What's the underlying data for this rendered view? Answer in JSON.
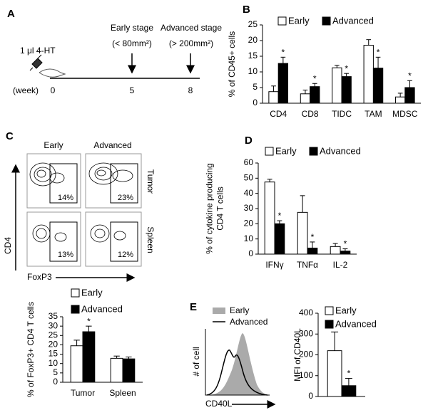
{
  "panel_labels": [
    "A",
    "B",
    "C",
    "D",
    "E"
  ],
  "timeline": {
    "dose": "1 μl 4-HT",
    "unit": "(week)",
    "weeks": [
      "0",
      "5",
      "8"
    ],
    "stages": [
      {
        "name": "Early stage",
        "size": "(< 80mm²)"
      },
      {
        "name": "Advanced stage",
        "size": "(> 200mm²)"
      }
    ]
  },
  "flow": {
    "columns": [
      "Early",
      "Advanced"
    ],
    "rows": [
      "Tumor",
      "Spleen"
    ],
    "gates": [
      [
        "14%",
        "23%"
      ],
      [
        "13%",
        "12%"
      ]
    ],
    "y_axis": "CD4",
    "x_axis": "FoxP3"
  },
  "histogram": {
    "legend": [
      "Early",
      "Advanced"
    ],
    "y_axis": "# of cell",
    "x_axis": "CD40L"
  },
  "chart_data": [
    {
      "type": "bar",
      "ylabel": [
        "% of CD45+ cells"
      ],
      "categories": [
        "CD4",
        "CD8",
        "TIDC",
        "TAM",
        "MDSC"
      ],
      "ylim": [
        0,
        25
      ],
      "yticks": [
        0,
        5,
        10,
        15,
        20,
        25
      ],
      "series": [
        {
          "name": "Early",
          "color": "#ffffff",
          "values": [
            3.7,
            3,
            11.3,
            18.5,
            2
          ],
          "errors": [
            1.8,
            1.2,
            0.8,
            1.8,
            1.2
          ],
          "annotations": [
            null,
            null,
            null,
            null,
            null
          ]
        },
        {
          "name": "Advanced",
          "color": "#000000",
          "values": [
            12.7,
            5.3,
            8.5,
            11.2,
            5
          ],
          "errors": [
            2,
            1,
            1,
            3.5,
            2.2
          ],
          "annotations": [
            "*",
            "*",
            "*",
            "*",
            "*"
          ]
        }
      ]
    },
    {
      "type": "bar",
      "ylabel": [
        "% of cytokine producing",
        "CD4 T cells"
      ],
      "categories": [
        "IFNγ",
        "TNFα",
        "IL-2"
      ],
      "ylim": [
        0,
        60
      ],
      "yticks": [
        0,
        10,
        20,
        30,
        40,
        50,
        60
      ],
      "series": [
        {
          "name": "Early",
          "color": "#ffffff",
          "values": [
            47.5,
            27.5,
            5
          ],
          "errors": [
            1.8,
            11,
            2
          ],
          "annotations": [
            null,
            null,
            null
          ]
        },
        {
          "name": "Advanced",
          "color": "#000000",
          "values": [
            20,
            4,
            2
          ],
          "errors": [
            2,
            4,
            1.5
          ],
          "annotations": [
            "*",
            "*",
            "*"
          ]
        }
      ]
    },
    {
      "type": "bar",
      "ylabel": [
        "% of FoxP3+ CD4 T cells"
      ],
      "categories": [
        "Tumor",
        "Spleen"
      ],
      "ylim": [
        0,
        35
      ],
      "yticks": [
        0,
        5,
        10,
        15,
        20,
        25,
        30,
        35
      ],
      "series": [
        {
          "name": "Early",
          "color": "#ffffff",
          "values": [
            19.5,
            12.8
          ],
          "errors": [
            3,
            1.2
          ],
          "annotations": [
            null,
            null
          ]
        },
        {
          "name": "Advanced",
          "color": "#000000",
          "values": [
            27,
            12.5
          ],
          "errors": [
            3,
            1
          ],
          "annotations": [
            "*",
            null
          ]
        }
      ]
    },
    {
      "type": "bar",
      "ylabel": [
        "MFI of CD40L"
      ],
      "categories": [
        null
      ],
      "ylim": [
        0,
        400
      ],
      "yticks": [
        0,
        100,
        200,
        300,
        400
      ],
      "series": [
        {
          "name": "Early",
          "color": "#ffffff",
          "values": [
            220
          ],
          "errors": [
            90
          ],
          "annotations": [
            null
          ]
        },
        {
          "name": "Advanced",
          "color": "#000000",
          "values": [
            52
          ],
          "errors": [
            35
          ],
          "annotations": [
            "*"
          ]
        }
      ]
    }
  ]
}
